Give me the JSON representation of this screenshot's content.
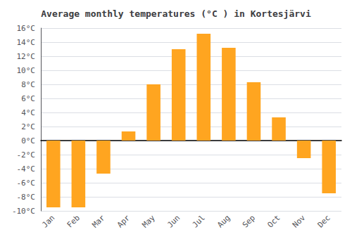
{
  "chart_data": {
    "type": "bar",
    "title": "Average monthly temperatures (°C ) in Kortesjärvi",
    "categories": [
      "Jan",
      "Feb",
      "Mar",
      "Apr",
      "May",
      "Jun",
      "Jul",
      "Aug",
      "Sep",
      "Oct",
      "Nov",
      "Dec"
    ],
    "values": [
      -9.5,
      -9.5,
      -4.7,
      1.3,
      8.0,
      13.0,
      15.2,
      13.2,
      8.3,
      3.3,
      -2.5,
      -7.5
    ],
    "color": "#FFA520",
    "ylim": [
      -10,
      16
    ],
    "yticks": [
      {
        "value": -10,
        "label": "-10°C"
      },
      {
        "value": -8,
        "label": "-8°C"
      },
      {
        "value": -6,
        "label": "-6°C"
      },
      {
        "value": -4,
        "label": "-4°C"
      },
      {
        "value": -2,
        "label": "-2°C"
      },
      {
        "value": 0,
        "label": "0°C"
      },
      {
        "value": 2,
        "label": "2°C"
      },
      {
        "value": 4,
        "label": "4°C"
      },
      {
        "value": 6,
        "label": "6°C"
      },
      {
        "value": 8,
        "label": "8°C"
      },
      {
        "value": 10,
        "label": "10°C"
      },
      {
        "value": 12,
        "label": "12°C"
      },
      {
        "value": 14,
        "label": "14°C"
      },
      {
        "value": 16,
        "label": "16°C"
      }
    ],
    "grid": true
  }
}
